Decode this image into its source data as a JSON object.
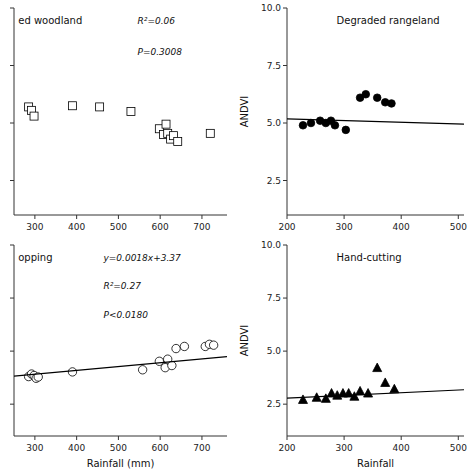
{
  "chart_data": [
    {
      "type": "scatter",
      "title": "ed woodland",
      "annotations": [
        "R²=0.06",
        "P=0.3008"
      ],
      "series": [
        {
          "type": "scatter",
          "marker": "open-square",
          "color": "black",
          "x": [
            285,
            292,
            298,
            390,
            455,
            530,
            598,
            608,
            614,
            618,
            625,
            632,
            642,
            720
          ],
          "values": [
            5.7,
            5.55,
            5.3,
            5.75,
            5.7,
            5.5,
            4.75,
            4.5,
            4.95,
            4.55,
            4.3,
            4.45,
            4.2,
            4.55
          ]
        }
      ],
      "xlim": [
        250,
        760
      ],
      "ylim": [
        1.0,
        10.0
      ],
      "xticks": [
        300,
        400,
        500,
        600,
        700
      ],
      "yticks": [
        2.5,
        5,
        7.5,
        10
      ],
      "tick_labels": "x"
    },
    {
      "type": "scatter",
      "title": "Degraded rangeland",
      "ylabel": "ANDVI",
      "series": [
        {
          "type": "scatter",
          "marker": "filled-circle",
          "color": "black",
          "x": [
            228,
            242,
            258,
            268,
            277,
            284,
            303,
            328,
            338,
            358,
            372,
            383
          ],
          "values": [
            4.9,
            5.0,
            5.1,
            5.0,
            5.1,
            4.9,
            4.7,
            6.1,
            6.25,
            6.1,
            5.9,
            5.85
          ]
        },
        {
          "type": "line",
          "color": "black",
          "x": [
            200,
            510
          ],
          "values": [
            5.18,
            4.95
          ]
        }
      ],
      "xlim": [
        200,
        510
      ],
      "ylim": [
        1.0,
        10.0
      ],
      "xticks": [
        200,
        300,
        400,
        500
      ],
      "yticks": [
        2.5,
        {
          "value": 5.0,
          "label": "5.0"
        },
        7.5,
        {
          "value": 10.0,
          "label": "10.0"
        }
      ]
    },
    {
      "type": "scatter",
      "title": "opping",
      "xlabel": "Rainfall (mm)",
      "annotations": [
        "y=0.0018x+3.37",
        "R²=0.27",
        "P<0.0180"
      ],
      "series": [
        {
          "type": "scatter",
          "marker": "open-circle",
          "color": "black",
          "x": [
            285,
            292,
            298,
            303,
            308,
            390,
            558,
            598,
            612,
            618,
            628,
            638,
            658,
            708,
            718,
            728
          ],
          "values": [
            3.8,
            3.92,
            3.85,
            3.72,
            3.78,
            4.02,
            4.12,
            4.52,
            4.22,
            4.62,
            4.32,
            5.12,
            5.22,
            5.22,
            5.32,
            5.28
          ]
        },
        {
          "type": "line",
          "color": "black",
          "x": [
            250,
            760
          ],
          "values": [
            3.82,
            4.74
          ]
        }
      ],
      "xlim": [
        250,
        760
      ],
      "ylim": [
        1.0,
        10.0
      ],
      "xticks": [
        300,
        400,
        500,
        600,
        700
      ],
      "yticks": [
        2.5,
        5,
        7.5,
        10
      ],
      "tick_labels": "x"
    },
    {
      "type": "scatter",
      "title": "Hand-cutting",
      "xlabel": "Rainfall",
      "ylabel": "ANDVI",
      "series": [
        {
          "type": "scatter",
          "marker": "filled-triangle",
          "color": "black",
          "x": [
            228,
            252,
            268,
            278,
            288,
            298,
            308,
            318,
            328,
            342,
            358,
            372,
            388
          ],
          "values": [
            2.7,
            2.8,
            2.75,
            3.0,
            2.9,
            3.0,
            3.0,
            2.85,
            3.1,
            3.0,
            4.2,
            3.5,
            3.2
          ]
        },
        {
          "type": "line",
          "color": "black",
          "x": [
            200,
            510
          ],
          "values": [
            2.78,
            3.18
          ]
        }
      ],
      "xlim": [
        200,
        510
      ],
      "ylim": [
        1.0,
        10.0
      ],
      "xticks": [
        200,
        300,
        400,
        500
      ],
      "yticks": [
        2.5,
        {
          "value": 5.0,
          "label": "5.0"
        },
        7.5,
        {
          "value": 10.0,
          "label": "10.0"
        }
      ]
    }
  ]
}
